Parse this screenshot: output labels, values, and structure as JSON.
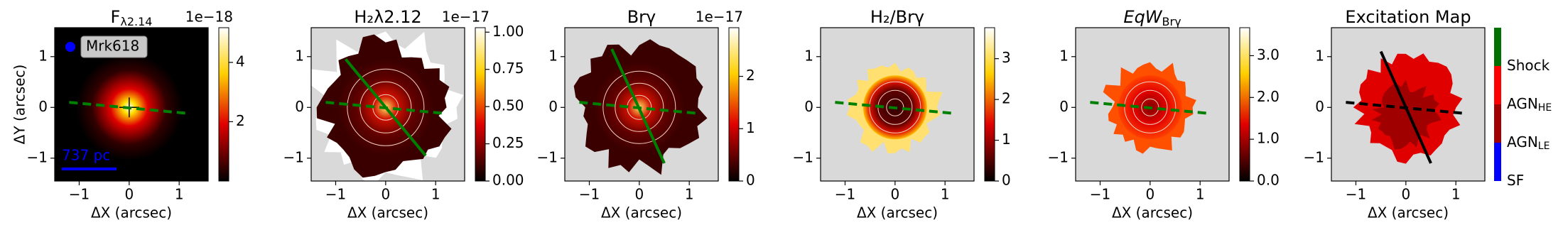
{
  "chart_data": [
    {
      "type": "image",
      "title": "F",
      "title_sub": "λ2.14",
      "xlabel": "ΔX (arcsec)",
      "ylabel": "ΔY (arcsec)",
      "xlim": [
        -1.49,
        1.58
      ],
      "ylim": [
        -1.45,
        1.57
      ],
      "xticks": [
        {
          "value": -1,
          "label": "−1"
        },
        0,
        1
      ],
      "yticks": [
        {
          "value": -1,
          "label": "−1"
        },
        0,
        1
      ],
      "legend": "Mrk618",
      "scale_bar": "737 pc",
      "colorbar": {
        "clim": [
          0,
          5.17
        ],
        "ticks": [
          2,
          4
        ],
        "offset": "1e−18"
      }
    },
    {
      "type": "image",
      "title": "H₂λ2.12",
      "xlabel": "ΔX (arcsec)",
      "xlim": [
        -1.49,
        1.58
      ],
      "ylim": [
        -1.45,
        1.57
      ],
      "xticks": [
        {
          "value": -1,
          "label": "−1"
        },
        0,
        1
      ],
      "yticks": [
        {
          "value": -1,
          "label": "−1"
        },
        0,
        1
      ],
      "colorbar": {
        "clim": [
          0,
          1.03
        ],
        "ticks": [
          {
            "value": 0,
            "label": "0.00"
          },
          {
            "value": 0.25,
            "label": "0.25"
          },
          {
            "value": 0.5,
            "label": "0.50"
          },
          {
            "value": 0.75,
            "label": "0.75"
          },
          {
            "value": 1,
            "label": "1.00"
          }
        ],
        "offset": "1e−17"
      }
    },
    {
      "type": "image",
      "title": "Brγ",
      "xlabel": "ΔX (arcsec)",
      "xlim": [
        -1.49,
        1.58
      ],
      "ylim": [
        -1.45,
        1.57
      ],
      "xticks": [
        {
          "value": -1,
          "label": "−1"
        },
        0,
        1
      ],
      "yticks": [
        {
          "value": -1,
          "label": "−1"
        },
        0,
        1
      ],
      "colorbar": {
        "clim": [
          0,
          2.93
        ],
        "ticks": [
          0,
          1,
          2
        ],
        "offset": "1e−17"
      }
    },
    {
      "type": "image",
      "title": "H₂/Brγ",
      "xlabel": "ΔX (arcsec)",
      "xlim": [
        -1.49,
        1.58
      ],
      "ylim": [
        -1.45,
        1.57
      ],
      "xticks": [
        {
          "value": -1,
          "label": "−1"
        },
        0,
        1
      ],
      "yticks": [
        {
          "value": -1,
          "label": "−1"
        },
        0,
        1
      ],
      "colorbar": {
        "clim": [
          0,
          3.76
        ],
        "ticks": [
          0,
          1,
          2,
          3
        ]
      }
    },
    {
      "type": "image",
      "title": "EqW",
      "title_sub": "Brγ",
      "title_italic": true,
      "xlabel": "ΔX (arcsec)",
      "xlim": [
        -1.49,
        1.58
      ],
      "ylim": [
        -1.45,
        1.57
      ],
      "xticks": [
        {
          "value": -1,
          "label": "−1"
        },
        0,
        1
      ],
      "yticks": [
        {
          "value": -1,
          "label": "−1"
        },
        0,
        1
      ],
      "colorbar": {
        "clim": [
          0,
          3.67
        ],
        "ticks": [
          {
            "value": 0,
            "label": "0.0"
          },
          {
            "value": 1,
            "label": "1.0"
          },
          {
            "value": 2,
            "label": "2.0"
          },
          {
            "value": 3,
            "label": "3.0"
          }
        ]
      }
    },
    {
      "type": "image",
      "title": "Excitation Map",
      "xlabel": "ΔX (arcsec)",
      "xlim": [
        -1.49,
        1.58
      ],
      "ylim": [
        -1.45,
        1.57
      ],
      "xticks": [
        {
          "value": -1,
          "label": "−1"
        },
        0,
        1
      ],
      "yticks": [
        {
          "value": -1,
          "label": "−1"
        },
        0,
        1
      ],
      "colorbar": {
        "classes": [
          {
            "label": "SF",
            "color": "#0000ff"
          },
          {
            "label": "AGN",
            "sub": "LE",
            "color": "#a00000"
          },
          {
            "label": "AGN",
            "sub": "HE",
            "color": "#ff0000"
          },
          {
            "label": "Shock",
            "color": "#007000"
          }
        ]
      }
    }
  ]
}
